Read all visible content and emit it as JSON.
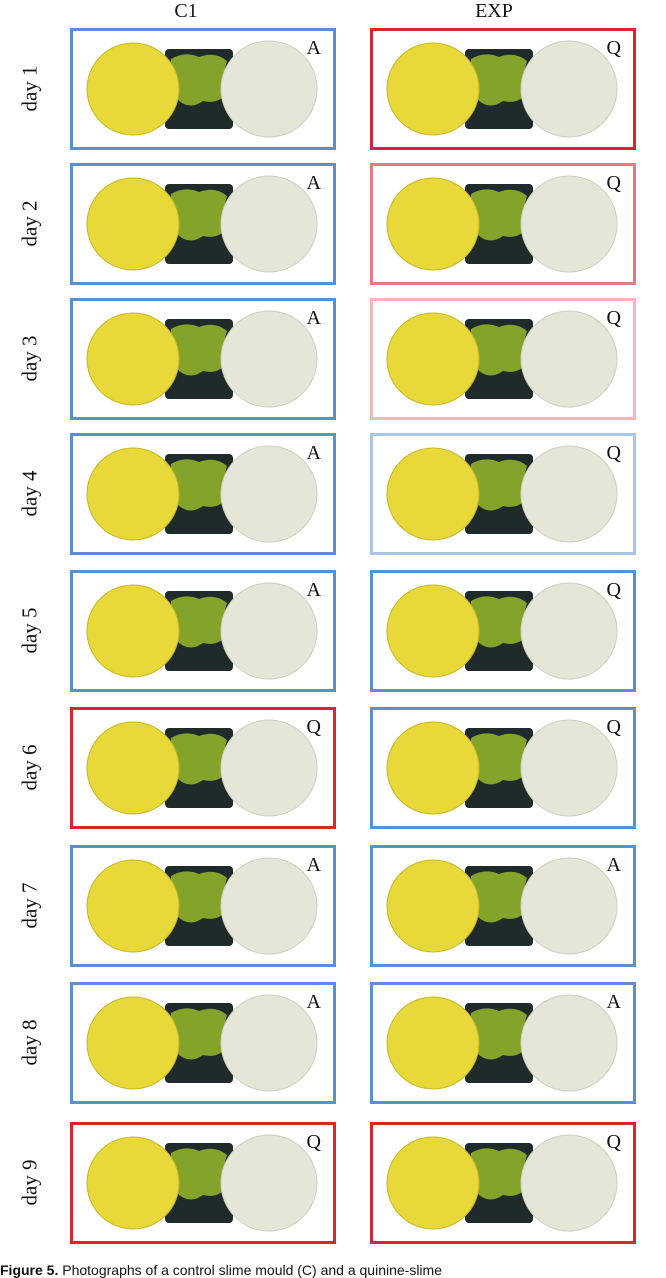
{
  "columns": [
    "C1",
    "EXP"
  ],
  "rows": [
    {
      "day": "day 1",
      "c1": {
        "letter": "A",
        "border": "#5b8fcf"
      },
      "exp": {
        "letter": "Q",
        "border": "#d9262e"
      }
    },
    {
      "day": "day 2",
      "c1": {
        "letter": "A",
        "border": "#5b8fcf"
      },
      "exp": {
        "letter": "Q",
        "border": "#e57a80"
      }
    },
    {
      "day": "day 3",
      "c1": {
        "letter": "A",
        "border": "#5b8fcf"
      },
      "exp": {
        "letter": "Q",
        "border": "#f1b8bb"
      }
    },
    {
      "day": "day 4",
      "c1": {
        "letter": "A",
        "border": "#5b8fcf"
      },
      "exp": {
        "letter": "Q",
        "border": "#a9c6e8"
      }
    },
    {
      "day": "day 5",
      "c1": {
        "letter": "A",
        "border": "#5b8fcf"
      },
      "exp": {
        "letter": "Q",
        "border": "#5b8fcf"
      }
    },
    {
      "day": "day 6",
      "c1": {
        "letter": "Q",
        "border": "#d9262e"
      },
      "exp": {
        "letter": "Q",
        "border": "#5b8fcf"
      }
    },
    {
      "day": "day 7",
      "c1": {
        "letter": "A",
        "border": "#5b8fcf"
      },
      "exp": {
        "letter": "A",
        "border": "#5b8fcf"
      }
    },
    {
      "day": "day 8",
      "c1": {
        "letter": "A",
        "border": "#5b8fcf"
      },
      "exp": {
        "letter": "A",
        "border": "#5b8fcf"
      }
    },
    {
      "day": "day 9",
      "c1": {
        "letter": "Q",
        "border": "#d9262e"
      },
      "exp": {
        "letter": "Q",
        "border": "#d9262e"
      }
    }
  ],
  "caption": {
    "label": "Figure 5.",
    "text": "Photographs of a control slime mould (C) and a quinine-slime"
  },
  "colors": {
    "oat_yellow": "#e8d83a",
    "plasmodium_green": "#8fb02a",
    "gel_dark": "#1f2a2a",
    "agar_white": "#e6e6d8",
    "active_blue": "#5b8fcf",
    "quiescent_red": "#d9262e"
  }
}
